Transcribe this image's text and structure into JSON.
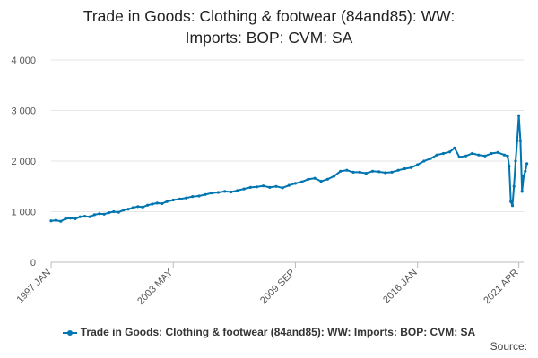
{
  "chart_data": {
    "type": "line",
    "title_lines": [
      "Trade in Goods: Clothing & footwear (84and85): WW:",
      "Imports: BOP: CVM: SA"
    ],
    "ylim": [
      0,
      4000
    ],
    "y_ticks": [
      0,
      1000,
      2000,
      3000,
      4000
    ],
    "y_tick_labels": [
      "0",
      "1 000",
      "2 000",
      "3 000",
      "4 000"
    ],
    "x_tick_labels": [
      "1997 JAN",
      "2003 MAY",
      "2009 SEP",
      "2016 JAN",
      "2021 APR"
    ],
    "x_tick_months": [
      1997.0,
      2003.333,
      2009.667,
      2016.0,
      2021.25
    ],
    "x_range": [
      1997.0,
      2021.5
    ],
    "grid": true,
    "legend_position": "bottom",
    "series": [
      {
        "name": "Trade in Goods: Clothing & footwear (84and85): WW: Imports: BOP: CVM: SA",
        "color": "#0075b0",
        "points": [
          [
            "1997 JAN",
            820
          ],
          [
            "1997 APR",
            830
          ],
          [
            "1997 JUL",
            810
          ],
          [
            "1997 OCT",
            860
          ],
          [
            "1998 JAN",
            870
          ],
          [
            "1998 APR",
            860
          ],
          [
            "1998 JUL",
            900
          ],
          [
            "1998 OCT",
            910
          ],
          [
            "1999 JAN",
            900
          ],
          [
            "1999 APR",
            940
          ],
          [
            "1999 JUL",
            960
          ],
          [
            "1999 OCT",
            950
          ],
          [
            "2000 JAN",
            980
          ],
          [
            "2000 APR",
            1000
          ],
          [
            "2000 JUL",
            990
          ],
          [
            "2000 OCT",
            1030
          ],
          [
            "2001 JAN",
            1050
          ],
          [
            "2001 APR",
            1080
          ],
          [
            "2001 JUL",
            1100
          ],
          [
            "2001 OCT",
            1090
          ],
          [
            "2002 JAN",
            1130
          ],
          [
            "2002 APR",
            1150
          ],
          [
            "2002 JUL",
            1170
          ],
          [
            "2002 OCT",
            1160
          ],
          [
            "2003 JAN",
            1200
          ],
          [
            "2003 MAY",
            1230
          ],
          [
            "2003 SEP",
            1250
          ],
          [
            "2004 JAN",
            1270
          ],
          [
            "2004 MAY",
            1300
          ],
          [
            "2004 SEP",
            1310
          ],
          [
            "2005 JAN",
            1340
          ],
          [
            "2005 MAY",
            1370
          ],
          [
            "2005 SEP",
            1380
          ],
          [
            "2006 JAN",
            1400
          ],
          [
            "2006 MAY",
            1390
          ],
          [
            "2006 SEP",
            1420
          ],
          [
            "2007 JAN",
            1450
          ],
          [
            "2007 MAY",
            1480
          ],
          [
            "2007 SEP",
            1490
          ],
          [
            "2008 JAN",
            1510
          ],
          [
            "2008 MAY",
            1480
          ],
          [
            "2008 SEP",
            1500
          ],
          [
            "2009 JAN",
            1470
          ],
          [
            "2009 MAY",
            1520
          ],
          [
            "2009 SEP",
            1560
          ],
          [
            "2010 JAN",
            1590
          ],
          [
            "2010 MAY",
            1640
          ],
          [
            "2010 SEP",
            1660
          ],
          [
            "2011 JAN",
            1600
          ],
          [
            "2011 MAY",
            1640
          ],
          [
            "2011 SEP",
            1700
          ],
          [
            "2012 JAN",
            1800
          ],
          [
            "2012 MAY",
            1820
          ],
          [
            "2012 SEP",
            1780
          ],
          [
            "2013 JAN",
            1780
          ],
          [
            "2013 MAY",
            1760
          ],
          [
            "2013 SEP",
            1800
          ],
          [
            "2014 JAN",
            1790
          ],
          [
            "2014 MAY",
            1770
          ],
          [
            "2014 SEP",
            1780
          ],
          [
            "2015 JAN",
            1820
          ],
          [
            "2015 MAY",
            1850
          ],
          [
            "2015 SEP",
            1870
          ],
          [
            "2016 JAN",
            1930
          ],
          [
            "2016 MAY",
            2000
          ],
          [
            "2016 SEP",
            2050
          ],
          [
            "2017 JAN",
            2120
          ],
          [
            "2017 MAY",
            2150
          ],
          [
            "2017 SEP",
            2180
          ],
          [
            "2017 DEC",
            2260
          ],
          [
            "2018 MAR",
            2080
          ],
          [
            "2018 JUL",
            2100
          ],
          [
            "2018 NOV",
            2150
          ],
          [
            "2019 MAR",
            2120
          ],
          [
            "2019 JUL",
            2100
          ],
          [
            "2019 NOV",
            2150
          ],
          [
            "2020 MAR",
            2170
          ],
          [
            "2020 JUL",
            2120
          ],
          [
            "2020 SEP",
            2100
          ],
          [
            "2020 OCT",
            1900
          ],
          [
            "2020 NOV",
            1200
          ],
          [
            "2020 DEC",
            1120
          ],
          [
            "2021 JAN",
            1500
          ],
          [
            "2021 FEB",
            2000
          ],
          [
            "2021 MAR",
            2400
          ],
          [
            "2021 APR",
            2900
          ],
          [
            "2021 MAY",
            2400
          ],
          [
            "2021 JUN",
            1400
          ],
          [
            "2021 JUL",
            1700
          ],
          [
            "2021 AUG",
            1800
          ],
          [
            "2021 SEP",
            1950
          ]
        ]
      }
    ],
    "source_label": "Source:"
  }
}
